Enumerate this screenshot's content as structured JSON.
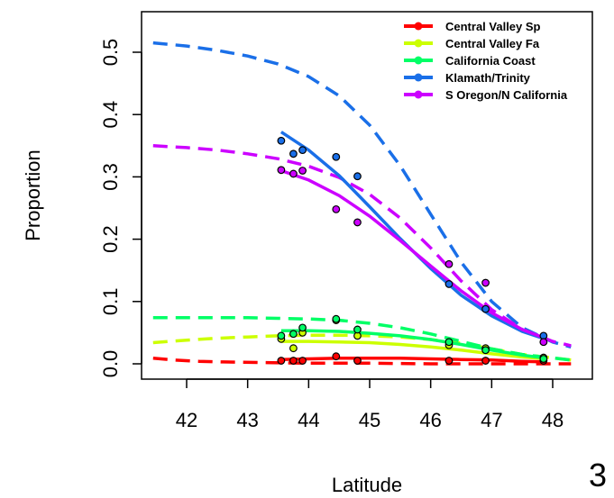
{
  "figure": {
    "panel_number": "3"
  },
  "chart_data": {
    "type": "line",
    "title": "",
    "xlabel": "Latitude",
    "ylabel": "Proportion",
    "xlim": [
      41.4,
      48.5
    ],
    "ylim": [
      -0.01,
      0.565
    ],
    "x_ticks": [
      42,
      43,
      44,
      45,
      46,
      47,
      48
    ],
    "y_ticks": [
      0.0,
      0.1,
      0.2,
      0.3,
      0.4,
      0.5
    ],
    "x_tick_labels": [
      "42",
      "43",
      "44",
      "45",
      "46",
      "47",
      "48"
    ],
    "y_tick_labels": [
      "0.0",
      "0.1",
      "0.2",
      "0.3",
      "0.4",
      "0.5"
    ],
    "legend_position": "top-right",
    "grid": false,
    "series": [
      {
        "name": "Central Valley Sp",
        "color": "#ff0000",
        "points": [
          [
            43.55,
            0.005
          ],
          [
            43.75,
            0.005
          ],
          [
            43.9,
            0.005
          ],
          [
            44.45,
            0.012
          ],
          [
            44.8,
            0.005
          ],
          [
            46.3,
            0.005
          ],
          [
            46.9,
            0.005
          ],
          [
            47.85,
            0.005
          ]
        ],
        "fit_solid": [
          [
            43.55,
            0.007
          ],
          [
            44.0,
            0.008
          ],
          [
            44.5,
            0.009
          ],
          [
            45.0,
            0.009
          ],
          [
            45.5,
            0.009
          ],
          [
            46.0,
            0.008
          ],
          [
            46.5,
            0.007
          ],
          [
            47.0,
            0.006
          ],
          [
            47.5,
            0.004
          ],
          [
            47.9,
            0.003
          ]
        ],
        "fit_dashed": [
          [
            41.45,
            0.009
          ],
          [
            41.8,
            0.006
          ],
          [
            42.2,
            0.004
          ],
          [
            42.6,
            0.003
          ],
          [
            43.2,
            0.002
          ],
          [
            44.0,
            0.001
          ],
          [
            45.0,
            0.001
          ],
          [
            46.0,
            0.0
          ],
          [
            47.0,
            0.0
          ],
          [
            48.3,
            0.0
          ]
        ]
      },
      {
        "name": "Central Valley Fa",
        "color": "#ccff00",
        "points": [
          [
            43.55,
            0.04
          ],
          [
            43.75,
            0.025
          ],
          [
            43.9,
            0.05
          ],
          [
            44.45,
            0.07
          ],
          [
            44.8,
            0.045
          ],
          [
            46.3,
            0.03
          ],
          [
            46.9,
            0.025
          ],
          [
            47.85,
            0.01
          ]
        ],
        "fit_solid": [
          [
            43.55,
            0.036
          ],
          [
            44.0,
            0.036
          ],
          [
            44.5,
            0.035
          ],
          [
            45.0,
            0.034
          ],
          [
            45.5,
            0.031
          ],
          [
            46.0,
            0.027
          ],
          [
            46.5,
            0.022
          ],
          [
            47.0,
            0.016
          ],
          [
            47.5,
            0.011
          ],
          [
            47.9,
            0.008
          ]
        ],
        "fit_dashed": [
          [
            41.45,
            0.034
          ],
          [
            42.0,
            0.038
          ],
          [
            42.5,
            0.041
          ],
          [
            43.0,
            0.043
          ],
          [
            43.5,
            0.045
          ],
          [
            44.0,
            0.046
          ],
          [
            44.5,
            0.046
          ],
          [
            45.0,
            0.045
          ],
          [
            45.5,
            0.043
          ],
          [
            46.0,
            0.039
          ],
          [
            46.5,
            0.033
          ],
          [
            47.0,
            0.024
          ],
          [
            47.5,
            0.015
          ],
          [
            48.3,
            0.006
          ]
        ]
      },
      {
        "name": "California Coast",
        "color": "#00ff66",
        "points": [
          [
            43.55,
            0.045
          ],
          [
            43.75,
            0.048
          ],
          [
            43.9,
            0.058
          ],
          [
            44.45,
            0.072
          ],
          [
            44.8,
            0.055
          ],
          [
            46.3,
            0.035
          ],
          [
            46.9,
            0.022
          ],
          [
            47.85,
            0.008
          ]
        ],
        "fit_solid": [
          [
            43.55,
            0.053
          ],
          [
            44.0,
            0.053
          ],
          [
            44.5,
            0.052
          ],
          [
            45.0,
            0.049
          ],
          [
            45.5,
            0.045
          ],
          [
            46.0,
            0.039
          ],
          [
            46.5,
            0.031
          ],
          [
            47.0,
            0.022
          ],
          [
            47.5,
            0.014
          ],
          [
            47.9,
            0.009
          ]
        ],
        "fit_dashed": [
          [
            41.45,
            0.074
          ],
          [
            42.0,
            0.074
          ],
          [
            42.5,
            0.074
          ],
          [
            43.0,
            0.074
          ],
          [
            43.5,
            0.073
          ],
          [
            44.0,
            0.072
          ],
          [
            44.5,
            0.07
          ],
          [
            45.0,
            0.065
          ],
          [
            45.5,
            0.058
          ],
          [
            46.0,
            0.048
          ],
          [
            46.5,
            0.036
          ],
          [
            47.0,
            0.024
          ],
          [
            47.5,
            0.015
          ],
          [
            48.3,
            0.006
          ]
        ]
      },
      {
        "name": "Klamath/Trinity",
        "color": "#1a6fe8",
        "points": [
          [
            43.55,
            0.358
          ],
          [
            43.75,
            0.337
          ],
          [
            43.9,
            0.343
          ],
          [
            44.45,
            0.332
          ],
          [
            44.8,
            0.301
          ],
          [
            46.3,
            0.128
          ],
          [
            46.9,
            0.088
          ],
          [
            47.85,
            0.045
          ]
        ],
        "fit_solid": [
          [
            43.55,
            0.372
          ],
          [
            44.0,
            0.343
          ],
          [
            44.5,
            0.302
          ],
          [
            45.0,
            0.252
          ],
          [
            45.5,
            0.201
          ],
          [
            46.0,
            0.153
          ],
          [
            46.5,
            0.11
          ],
          [
            47.0,
            0.077
          ],
          [
            47.5,
            0.052
          ],
          [
            47.9,
            0.039
          ]
        ],
        "fit_dashed": [
          [
            41.45,
            0.515
          ],
          [
            42.0,
            0.51
          ],
          [
            42.5,
            0.503
          ],
          [
            43.0,
            0.494
          ],
          [
            43.5,
            0.481
          ],
          [
            44.0,
            0.461
          ],
          [
            44.5,
            0.43
          ],
          [
            45.0,
            0.383
          ],
          [
            45.5,
            0.318
          ],
          [
            46.0,
            0.24
          ],
          [
            46.5,
            0.163
          ],
          [
            47.0,
            0.1
          ],
          [
            47.5,
            0.058
          ],
          [
            48.0,
            0.035
          ],
          [
            48.3,
            0.027
          ]
        ]
      },
      {
        "name": "S Oregon/N California",
        "color": "#cc00ff",
        "points": [
          [
            43.55,
            0.311
          ],
          [
            43.75,
            0.305
          ],
          [
            43.9,
            0.31
          ],
          [
            44.45,
            0.248
          ],
          [
            44.8,
            0.227
          ],
          [
            46.3,
            0.16
          ],
          [
            46.9,
            0.13
          ],
          [
            47.85,
            0.035
          ]
        ],
        "fit_solid": [
          [
            43.55,
            0.31
          ],
          [
            44.0,
            0.295
          ],
          [
            44.5,
            0.27
          ],
          [
            45.0,
            0.237
          ],
          [
            45.5,
            0.198
          ],
          [
            46.0,
            0.157
          ],
          [
            46.5,
            0.117
          ],
          [
            47.0,
            0.082
          ],
          [
            47.5,
            0.055
          ],
          [
            47.9,
            0.04
          ]
        ],
        "fit_dashed": [
          [
            41.45,
            0.35
          ],
          [
            42.0,
            0.347
          ],
          [
            42.5,
            0.343
          ],
          [
            43.0,
            0.337
          ],
          [
            43.5,
            0.329
          ],
          [
            44.0,
            0.317
          ],
          [
            44.5,
            0.299
          ],
          [
            45.0,
            0.272
          ],
          [
            45.5,
            0.234
          ],
          [
            46.0,
            0.186
          ],
          [
            46.5,
            0.133
          ],
          [
            47.0,
            0.087
          ],
          [
            47.5,
            0.055
          ],
          [
            48.0,
            0.036
          ],
          [
            48.3,
            0.029
          ]
        ]
      }
    ]
  }
}
